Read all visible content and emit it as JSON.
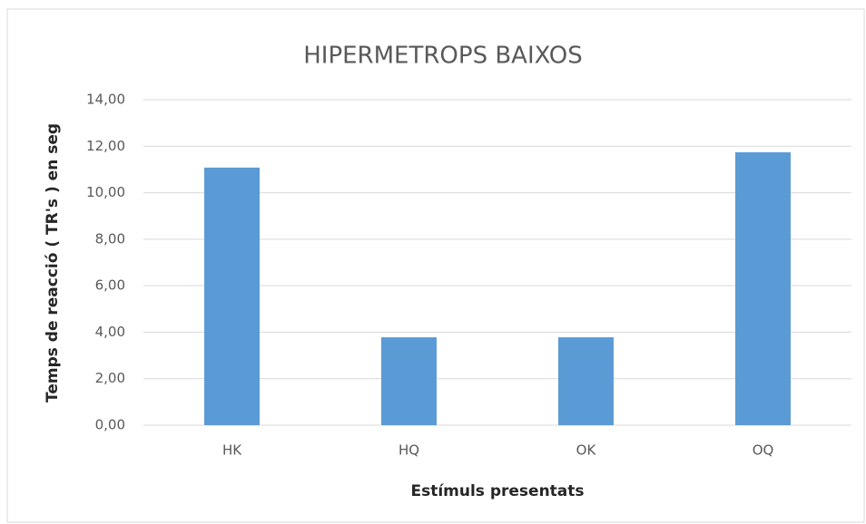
{
  "chart_data": {
    "type": "bar",
    "title": "HIPERMETROPS BAIXOS",
    "x_label": "Estímuls presentats",
    "y_label": "Temps de reacció ( TR's ) en seg",
    "categories": [
      "HK",
      "HQ",
      "OK",
      "OQ"
    ],
    "values": [
      11.08,
      3.78,
      3.78,
      11.74
    ],
    "color": "#5b9bd5",
    "ylim": [
      0,
      14
    ],
    "yticks": [
      {
        "value": 0,
        "label": "0,00"
      },
      {
        "value": 2,
        "label": "2,00"
      },
      {
        "value": 4,
        "label": "4,00"
      },
      {
        "value": 6,
        "label": "6,00"
      },
      {
        "value": 8,
        "label": "8,00"
      },
      {
        "value": 10,
        "label": "10,00"
      },
      {
        "value": 12,
        "label": "12,00"
      },
      {
        "value": 14,
        "label": "14,00"
      }
    ],
    "grid": true
  }
}
